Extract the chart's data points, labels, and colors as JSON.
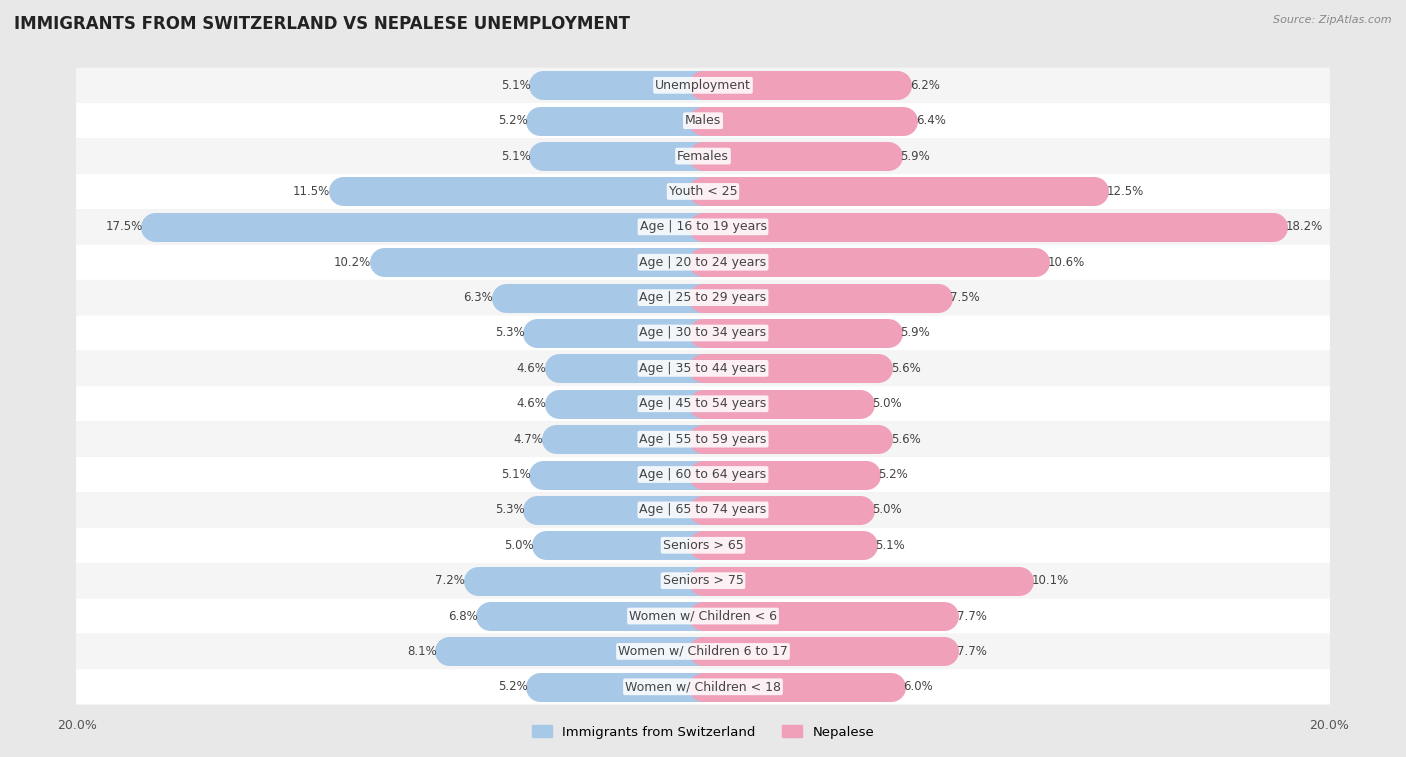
{
  "title": "IMMIGRANTS FROM SWITZERLAND VS NEPALESE UNEMPLOYMENT",
  "source": "Source: ZipAtlas.com",
  "categories": [
    "Unemployment",
    "Males",
    "Females",
    "Youth < 25",
    "Age | 16 to 19 years",
    "Age | 20 to 24 years",
    "Age | 25 to 29 years",
    "Age | 30 to 34 years",
    "Age | 35 to 44 years",
    "Age | 45 to 54 years",
    "Age | 55 to 59 years",
    "Age | 60 to 64 years",
    "Age | 65 to 74 years",
    "Seniors > 65",
    "Seniors > 75",
    "Women w/ Children < 6",
    "Women w/ Children 6 to 17",
    "Women w/ Children < 18"
  ],
  "swiss_values": [
    5.1,
    5.2,
    5.1,
    11.5,
    17.5,
    10.2,
    6.3,
    5.3,
    4.6,
    4.6,
    4.7,
    5.1,
    5.3,
    5.0,
    7.2,
    6.8,
    8.1,
    5.2
  ],
  "nepal_values": [
    6.2,
    6.4,
    5.9,
    12.5,
    18.2,
    10.6,
    7.5,
    5.9,
    5.6,
    5.0,
    5.6,
    5.2,
    5.0,
    5.1,
    10.1,
    7.7,
    7.7,
    6.0
  ],
  "swiss_color": "#a8c8e8",
  "nepal_color": "#f0a0b8",
  "swiss_label": "Immigrants from Switzerland",
  "nepal_label": "Nepalese",
  "axis_max": 20.0,
  "bg_color": "#e8e8e8",
  "row_color_even": "#f5f5f5",
  "row_color_odd": "#ffffff",
  "title_fontsize": 12,
  "label_fontsize": 9,
  "value_fontsize": 8.5
}
